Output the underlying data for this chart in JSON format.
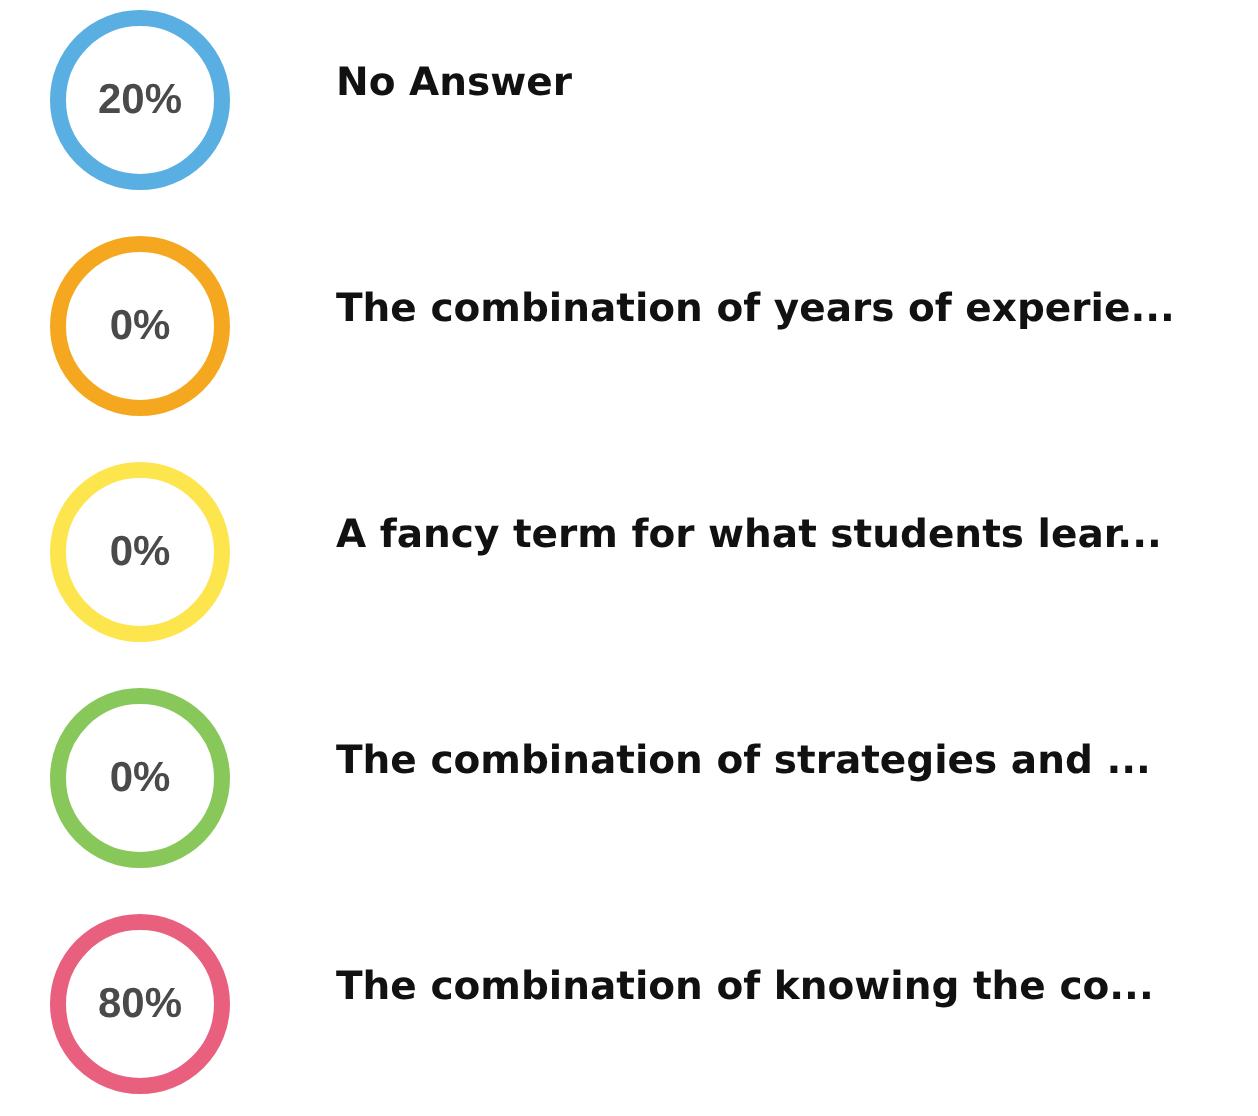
{
  "chart_data": {
    "type": "other",
    "categories": [
      "No Answer",
      "The combination of years of experie...",
      "A fancy term for what students lear...",
      "The combination of strategies and ...",
      "The combination of knowing the co..."
    ],
    "values": [
      20,
      0,
      0,
      0,
      80
    ],
    "value_labels": [
      "20%",
      "0%",
      "0%",
      "0%",
      "80%"
    ],
    "colors": [
      "#5aafe2",
      "#f5a81f",
      "#fde54d",
      "#88c75a",
      "#e95f7e"
    ]
  }
}
